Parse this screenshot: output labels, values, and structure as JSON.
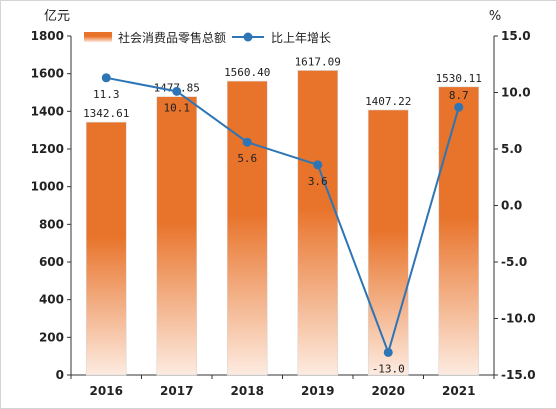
{
  "chart_data": {
    "type": "bar+line",
    "categories": [
      "2016",
      "2017",
      "2018",
      "2019",
      "2020",
      "2021"
    ],
    "bar_series": {
      "name": "社会消费品零售总额",
      "values": [
        1342.61,
        1477.85,
        1560.4,
        1617.09,
        1407.22,
        1530.11
      ],
      "labels": [
        "1342.61",
        "1477.85",
        "1560.40",
        "1617.09",
        "1407.22",
        "1530.11"
      ],
      "color_top": "#e8732a",
      "color_bottom": "#fdebe0"
    },
    "line_series": {
      "name": "比上年增长",
      "values": [
        11.3,
        10.1,
        5.6,
        3.6,
        -13.0,
        8.7
      ],
      "labels": [
        "11.3",
        "10.1",
        "5.6",
        "3.6",
        "-13.0",
        "8.7"
      ],
      "color": "#2e75b6"
    },
    "y_left": {
      "unit": "亿元",
      "ylim": [
        0,
        1800
      ],
      "ticks": [
        0,
        200,
        400,
        600,
        800,
        1000,
        1200,
        1400,
        1600,
        1800
      ],
      "tick_labels": [
        "0",
        "200",
        "400",
        "600",
        "800",
        "1000",
        "1200",
        "1400",
        "1600",
        "1800"
      ]
    },
    "y_right": {
      "unit": "%",
      "ylim": [
        -15,
        15
      ],
      "ticks": [
        15,
        10,
        5,
        0,
        -5,
        -10,
        -15
      ],
      "tick_labels": [
        "15.0",
        "10.0",
        "5.0",
        "0.0",
        "-5.0",
        "-10.0",
        "-15.0"
      ]
    },
    "legend_position": "top-center",
    "grid": false
  }
}
